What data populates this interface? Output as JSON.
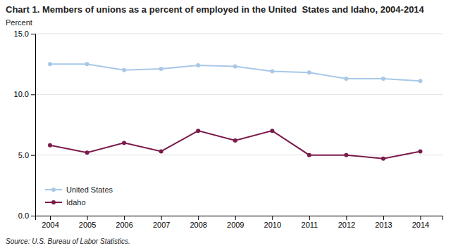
{
  "chart_data": {
    "type": "line",
    "title": "Chart 1. Members of unions as a percent of employed in the United  States and Idaho, 2004-2014",
    "ylabel": "Percent",
    "source": "Source: U.S. Bureau of Labor Statistics.",
    "x": [
      2004,
      2005,
      2006,
      2007,
      2008,
      2009,
      2010,
      2011,
      2012,
      2013,
      2014
    ],
    "series": [
      {
        "name": "United States",
        "color": "#a8c8e8",
        "marker": "circle",
        "values": [
          12.5,
          12.5,
          12.0,
          12.1,
          12.4,
          12.3,
          11.9,
          11.8,
          11.3,
          11.3,
          11.1
        ]
      },
      {
        "name": "Idaho",
        "color": "#7b1a4b",
        "marker": "circle",
        "values": [
          5.8,
          5.2,
          6.0,
          5.3,
          7.0,
          6.2,
          7.0,
          5.0,
          5.0,
          4.7,
          5.3
        ]
      }
    ],
    "xlim": [
      2003.6,
      2014.6
    ],
    "xticks": [
      2004,
      2005,
      2006,
      2007,
      2008,
      2009,
      2010,
      2011,
      2012,
      2013,
      2014
    ],
    "ylim": [
      0.0,
      15.0
    ],
    "yticks": [
      {
        "value": 0,
        "label": "0.0"
      },
      {
        "value": 5,
        "label": "5.0"
      },
      {
        "value": 10,
        "label": "10.0"
      },
      {
        "value": 15,
        "label": "15.0"
      }
    ],
    "grid": true,
    "legend": "lower left"
  }
}
